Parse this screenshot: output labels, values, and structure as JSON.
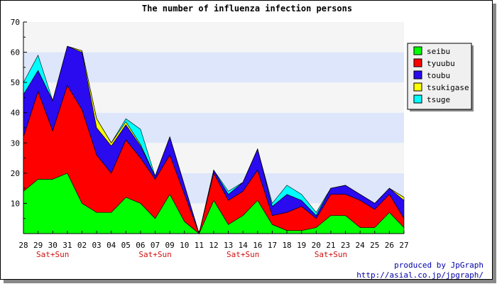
{
  "chart_data": {
    "type": "area",
    "stacked": true,
    "title": "The number of influenza infection persons",
    "xlabel": "",
    "ylabel": "",
    "ylim": [
      0,
      70
    ],
    "yticks": [
      10,
      20,
      30,
      40,
      50,
      60,
      70
    ],
    "grid": true,
    "legend_position": "right",
    "categories": [
      "28",
      "29",
      "30",
      "31",
      "02",
      "03",
      "04",
      "05",
      "06",
      "07",
      "09",
      "10",
      "11",
      "12",
      "13",
      "14",
      "16",
      "17",
      "18",
      "19",
      "20",
      "21",
      "23",
      "24",
      "25",
      "26",
      "27"
    ],
    "weekend_markers": [
      {
        "label": "Sat+Sun",
        "between": [
          "29",
          "31"
        ]
      },
      {
        "label": "Sat+Sun",
        "between": [
          "06",
          "09"
        ]
      },
      {
        "label": "Sat+Sun",
        "between": [
          "13",
          "16"
        ]
      },
      {
        "label": "Sat+Sun",
        "between": [
          "20",
          "23"
        ]
      }
    ],
    "series": [
      {
        "name": "seibu",
        "color": "#00ff00",
        "values": [
          14,
          18,
          18,
          20,
          10,
          7,
          7,
          12,
          10,
          5,
          13,
          4,
          0,
          11,
          3,
          6,
          11,
          3,
          1,
          1,
          2,
          6,
          6,
          2,
          2,
          7,
          2
        ]
      },
      {
        "name": "tyuubu",
        "color": "#ff0000",
        "values": [
          18,
          29,
          16,
          29,
          31,
          19,
          13,
          19,
          15,
          13,
          13,
          9,
          0,
          9,
          8,
          8,
          10,
          3,
          6,
          8,
          3,
          7,
          7,
          9,
          6,
          6,
          3
        ]
      },
      {
        "name": "toubu",
        "color": "#2a0aee",
        "values": [
          14,
          7,
          10,
          13,
          19,
          9,
          9,
          5,
          4,
          1,
          6,
          3,
          0,
          1,
          2,
          3,
          7,
          3,
          6,
          2,
          1,
          2,
          3,
          2,
          2,
          2,
          6
        ]
      },
      {
        "name": "tsukigase",
        "color": "#ffff00",
        "values": [
          0,
          0,
          0,
          0,
          0.5,
          3,
          1,
          1,
          0.5,
          0,
          0,
          0,
          0,
          0,
          0,
          0,
          0,
          0,
          0,
          0,
          0,
          0,
          0,
          0,
          0,
          0,
          1
        ]
      },
      {
        "name": "tsuge",
        "color": "#00ffff",
        "values": [
          4,
          5,
          0,
          0,
          0,
          0,
          0,
          1,
          5,
          0,
          0,
          0,
          0,
          0,
          1,
          0,
          0,
          1,
          3,
          2,
          1,
          0,
          0,
          0,
          0,
          0,
          0
        ]
      }
    ]
  },
  "footer": {
    "line1": "produced by JpGraph",
    "line2": "http://asial.co.jp/jpgraph/"
  }
}
